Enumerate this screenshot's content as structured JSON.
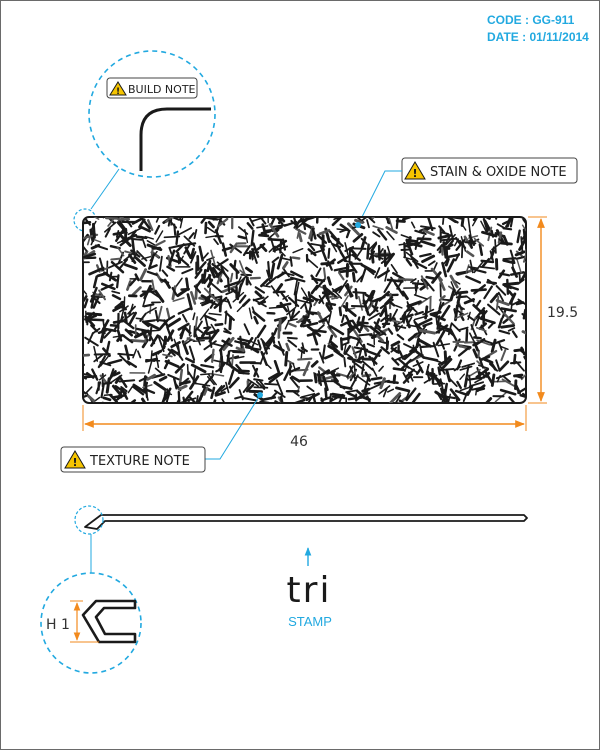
{
  "header": {
    "code": "CODE : GG-911",
    "date": "DATE : 01/11/2014"
  },
  "callouts": {
    "build_note": "BUILD NOTE",
    "stain_note": "STAIN & OXIDE NOTE",
    "texture_note": "TEXTURE NOTE"
  },
  "dimensions": {
    "width": "46",
    "height": "19.5",
    "thickness": "H 1"
  },
  "stamp": {
    "logo": "tri",
    "label": "STAMP"
  },
  "icons": [
    "warning-icon",
    "arrow-up-icon"
  ],
  "colors": {
    "accent": "#22a9e0",
    "dimension": "#f28a1d",
    "warning": "#f5c400",
    "line": "#222222"
  }
}
